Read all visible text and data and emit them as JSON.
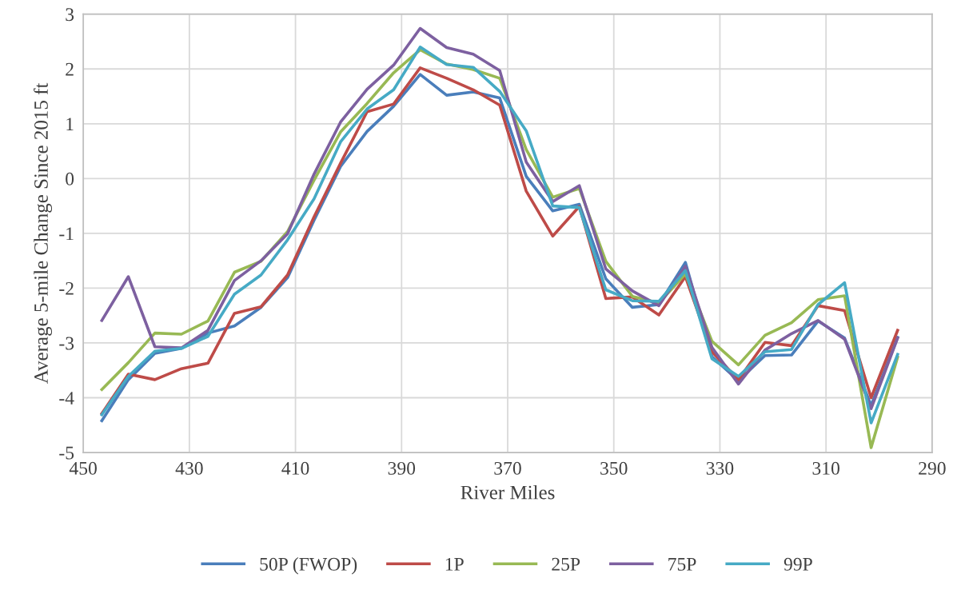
{
  "chart_data": {
    "type": "line",
    "xlabel": "River Miles",
    "ylabel": "Average 5-mile Change Since 2015 ft",
    "x": [
      446.5,
      441.5,
      436.5,
      431.5,
      426.5,
      421.5,
      416.5,
      411.5,
      406.5,
      401.5,
      396.5,
      391.5,
      386.5,
      381.5,
      376.5,
      371.5,
      366.5,
      361.5,
      356.5,
      351.5,
      346.5,
      341.5,
      336.5,
      331.5,
      326.5,
      321.5,
      316.5,
      311.5,
      306.5,
      301.5,
      296.5
    ],
    "xlim": [
      450,
      290
    ],
    "xticks": [
      450,
      430,
      410,
      390,
      370,
      350,
      330,
      310,
      290
    ],
    "ylim": [
      -5,
      3
    ],
    "yticks": [
      -5,
      -4,
      -3,
      -2,
      -1,
      0,
      1,
      2,
      3
    ],
    "grid": true,
    "legend": "bottom",
    "line_style": "solid",
    "marker": "none",
    "series": [
      {
        "name": "50P (FWOP)",
        "color": "#4a7ebb",
        "values": [
          -4.42,
          -3.67,
          -3.19,
          -3.1,
          -2.82,
          -2.69,
          -2.35,
          -1.81,
          -0.76,
          0.22,
          0.86,
          1.32,
          1.9,
          1.52,
          1.58,
          1.47,
          0.04,
          -0.59,
          -0.47,
          -1.83,
          -2.35,
          -2.3,
          -1.53,
          -3.25,
          -3.69,
          -3.23,
          -3.22,
          -2.6,
          -2.91,
          -4.14,
          -2.9
        ]
      },
      {
        "name": "1P",
        "color": "#be4b48",
        "values": [
          -4.29,
          -3.57,
          -3.67,
          -3.47,
          -3.37,
          -2.46,
          -2.34,
          -1.76,
          -0.7,
          0.28,
          1.22,
          1.36,
          2.02,
          1.83,
          1.62,
          1.34,
          -0.23,
          -1.05,
          -0.51,
          -2.19,
          -2.16,
          -2.49,
          -1.79,
          -3.16,
          -3.67,
          -2.99,
          -3.05,
          -2.32,
          -2.41,
          -4.0,
          -2.77
        ]
      },
      {
        "name": "25P",
        "color": "#98b954",
        "values": [
          -3.85,
          -3.36,
          -2.82,
          -2.84,
          -2.6,
          -1.71,
          -1.51,
          -0.97,
          -0.03,
          0.85,
          1.37,
          1.93,
          2.35,
          2.09,
          1.99,
          1.83,
          0.53,
          -0.34,
          -0.18,
          -1.51,
          -2.15,
          -2.27,
          -1.74,
          -2.97,
          -3.4,
          -2.86,
          -2.63,
          -2.21,
          -2.14,
          -4.91,
          -3.26
        ]
      },
      {
        "name": "75P",
        "color": "#7d60a0",
        "values": [
          -2.59,
          -1.79,
          -3.07,
          -3.09,
          -2.77,
          -1.86,
          -1.5,
          -1.01,
          0.08,
          1.03,
          1.63,
          2.07,
          2.74,
          2.39,
          2.27,
          1.97,
          0.3,
          -0.42,
          -0.13,
          -1.65,
          -2.05,
          -2.32,
          -1.6,
          -3.08,
          -3.75,
          -3.13,
          -2.83,
          -2.59,
          -2.93,
          -4.2,
          -2.91
        ]
      },
      {
        "name": "99P",
        "color": "#46aac5",
        "values": [
          -4.31,
          -3.61,
          -3.15,
          -3.1,
          -2.88,
          -2.11,
          -1.76,
          -1.12,
          -0.37,
          0.67,
          1.27,
          1.62,
          2.4,
          2.08,
          2.03,
          1.59,
          0.87,
          -0.5,
          -0.53,
          -2.03,
          -2.23,
          -2.24,
          -1.68,
          -3.29,
          -3.61,
          -3.16,
          -3.12,
          -2.3,
          -1.9,
          -4.46,
          -3.21
        ]
      }
    ]
  }
}
